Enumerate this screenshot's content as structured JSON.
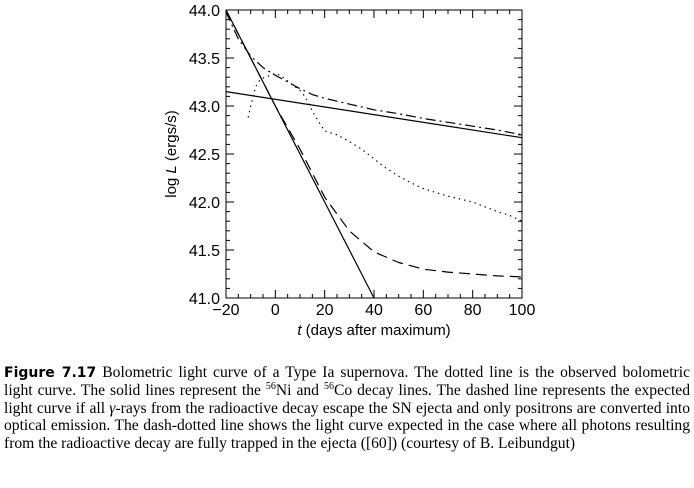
{
  "chart_data": {
    "type": "line",
    "xlabel_italic": "t",
    "xlabel_rest": " (days after maximum)",
    "ylabel_prefix": "log ",
    "ylabel_italic": "L",
    "ylabel_rest": " (ergs/s)",
    "xlim": [
      -20,
      100
    ],
    "ylim": [
      41.0,
      44.0
    ],
    "x_ticks": [
      -20,
      0,
      20,
      40,
      60,
      80,
      100
    ],
    "x_tick_labels": [
      "−20",
      "0",
      "20",
      "40",
      "60",
      "80",
      "100"
    ],
    "y_ticks": [
      41.0,
      41.5,
      42.0,
      42.5,
      43.0,
      43.5,
      44.0
    ],
    "y_tick_labels": [
      "41.0",
      "41.5",
      "42.0",
      "42.5",
      "43.0",
      "43.5",
      "44.0"
    ],
    "grid": false,
    "series": [
      {
        "style": "dotted",
        "x": [
          -11,
          -10,
          -8,
          -6,
          -4,
          -2,
          0,
          2,
          4,
          6,
          8,
          10,
          12,
          14,
          16,
          18,
          20,
          25,
          30,
          35,
          40,
          45,
          50,
          55,
          60,
          65,
          70,
          75,
          80,
          85,
          90,
          95,
          100
        ],
        "y": [
          42.88,
          43.0,
          43.2,
          43.28,
          43.3,
          43.32,
          43.34,
          43.32,
          43.28,
          43.24,
          43.2,
          43.16,
          43.1,
          43.0,
          42.9,
          42.82,
          42.74,
          42.7,
          42.63,
          42.55,
          42.45,
          42.35,
          42.27,
          42.2,
          42.14,
          42.1,
          42.06,
          42.03,
          42.0,
          41.95,
          41.9,
          41.86,
          41.8
        ]
      },
      {
        "style": "solid",
        "x": [
          -20,
          40
        ],
        "y": [
          44.0,
          41.0
        ]
      },
      {
        "style": "solid",
        "x": [
          -20,
          100
        ],
        "y": [
          43.15,
          42.67
        ]
      },
      {
        "style": "dashed",
        "x": [
          -20,
          -10,
          0,
          10,
          20,
          30,
          40,
          50,
          60,
          70,
          80,
          90,
          100
        ],
        "y": [
          44.0,
          43.5,
          43.0,
          42.55,
          42.05,
          41.7,
          41.48,
          41.37,
          41.3,
          41.27,
          41.25,
          41.23,
          41.22
        ]
      },
      {
        "style": "dashdot",
        "x": [
          -20,
          -15,
          -10,
          -5,
          0,
          5,
          10,
          15,
          20,
          30,
          40,
          50,
          60,
          70,
          80,
          90,
          100
        ],
        "y": [
          43.98,
          43.7,
          43.52,
          43.4,
          43.32,
          43.25,
          43.18,
          43.12,
          43.08,
          43.02,
          42.96,
          42.92,
          42.87,
          42.83,
          42.79,
          42.75,
          42.7
        ]
      }
    ]
  },
  "caption": {
    "label": "Figure 7.17",
    "text1": "Bolometric light curve of a Type Ia supernova. The dotted line is the observed bolometric light curve. The solid lines represent the ",
    "sup1": "56",
    "text2": "Ni and ",
    "sup2": "56",
    "text3": "Co decay lines. The dashed line represents the expected light curve if all ",
    "gamma": "γ",
    "text4": "-rays from the radioactive decay escape the SN ejecta and only positrons are converted into optical emission. The dash-dotted line shows the light curve expected in the case where all photons resulting from the radioactive decay are fully trapped in the ejecta ([60]) (courtesy of B. Leibundgut)"
  }
}
